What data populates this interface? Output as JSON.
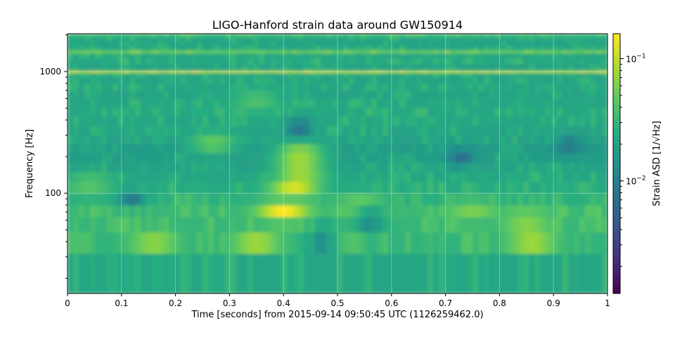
{
  "chart_data": {
    "type": "heatmap",
    "title": "LIGO-Hanford strain data around GW150914",
    "xlabel": "Time [seconds] from 2015-09-14 09:50:45 UTC (1126259462.0)",
    "ylabel": "Frequency [Hz]",
    "colorbar_label": "Strain ASD [1/√Hz]",
    "colormap": "viridis",
    "xlim": [
      0,
      1
    ],
    "ylim": [
      15,
      2048
    ],
    "yscale": "log",
    "color_scale": "log",
    "clim": [
      0.0012,
      0.16
    ],
    "x_ticks": [
      0,
      0.1,
      0.2,
      0.3,
      0.4,
      0.5,
      0.6,
      0.7,
      0.8,
      0.9,
      1
    ],
    "x_tick_labels": [
      "0",
      "0.1",
      "0.2",
      "0.3",
      "0.4",
      "0.5",
      "0.6",
      "0.7",
      "0.8",
      "0.9",
      "1"
    ],
    "y_major_ticks": [
      100,
      1000
    ],
    "y_major_labels": [
      "100",
      "1000"
    ],
    "y_minor_ticks": [
      20,
      30,
      40,
      50,
      60,
      70,
      80,
      90,
      200,
      300,
      400,
      500,
      600,
      700,
      800,
      900,
      2000
    ],
    "colorbar_ticks": [
      {
        "value": 0.1,
        "base": "10",
        "exponent": "−1"
      },
      {
        "value": 0.01,
        "base": "10",
        "exponent": "−2"
      }
    ],
    "grid": true,
    "frequency_bands_hz": [
      [
        15,
        32
      ],
      [
        32,
        48
      ],
      [
        48,
        64
      ],
      [
        64,
        80
      ],
      [
        80,
        100
      ],
      [
        100,
        125
      ],
      [
        125,
        150
      ],
      [
        150,
        180
      ],
      [
        180,
        215
      ],
      [
        215,
        255
      ],
      [
        255,
        300
      ],
      [
        300,
        360
      ],
      [
        360,
        430
      ],
      [
        430,
        510
      ],
      [
        510,
        600
      ],
      [
        600,
        700
      ],
      [
        700,
        800
      ],
      [
        800,
        900
      ],
      [
        900,
        980
      ],
      [
        980,
        1020
      ],
      [
        1020,
        1150
      ],
      [
        1150,
        1300
      ],
      [
        1300,
        1420
      ],
      [
        1420,
        1500
      ],
      [
        1500,
        1650
      ],
      [
        1650,
        1800
      ],
      [
        1800,
        1950
      ],
      [
        1950,
        2048
      ]
    ],
    "background_asd_by_band": [
      0.021,
      0.028,
      0.03,
      0.031,
      0.026,
      0.023,
      0.021,
      0.019,
      0.018,
      0.017,
      0.019,
      0.02,
      0.021,
      0.022,
      0.021,
      0.02,
      0.021,
      0.02,
      0.021,
      0.085,
      0.02,
      0.022,
      0.021,
      0.048,
      0.021,
      0.019,
      0.022,
      0.03
    ],
    "features": [
      {
        "t": 0.4,
        "f": 72,
        "asd": 0.16
      },
      {
        "t": 0.42,
        "f": 110,
        "asd": 0.12
      },
      {
        "t": 0.43,
        "f": 150,
        "asd": 0.1
      },
      {
        "t": 0.43,
        "f": 210,
        "asd": 0.09
      },
      {
        "t": 0.35,
        "f": 40,
        "asd": 0.075
      },
      {
        "t": 0.16,
        "f": 40,
        "asd": 0.065
      },
      {
        "t": 0.86,
        "f": 40,
        "asd": 0.075
      },
      {
        "t": 0.85,
        "f": 60,
        "asd": 0.07
      },
      {
        "t": 0.75,
        "f": 72,
        "asd": 0.06
      },
      {
        "t": 0.54,
        "f": 80,
        "asd": 0.055
      },
      {
        "t": 0.27,
        "f": 260,
        "asd": 0.05
      },
      {
        "t": 0.04,
        "f": 120,
        "asd": 0.045
      },
      {
        "t": 0.35,
        "f": 580,
        "asd": 0.04
      }
    ],
    "dips": [
      {
        "t": 0.47,
        "f": 45,
        "asd": 0.006
      },
      {
        "t": 0.56,
        "f": 62,
        "asd": 0.008
      },
      {
        "t": 0.73,
        "f": 200,
        "asd": 0.007
      },
      {
        "t": 0.43,
        "f": 350,
        "asd": 0.007
      },
      {
        "t": 0.93,
        "f": 250,
        "asd": 0.008
      },
      {
        "t": 0.12,
        "f": 90,
        "asd": 0.009
      }
    ]
  }
}
